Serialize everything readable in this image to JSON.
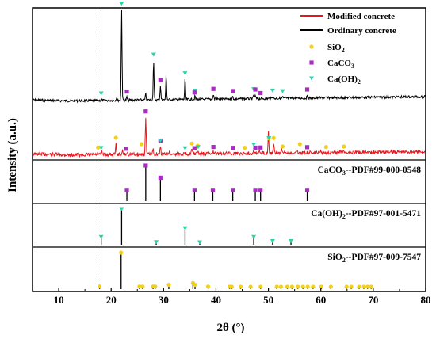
{
  "chart_data": {
    "type": "line",
    "xlabel": "2θ (°)",
    "ylabel": "Intensity (a.u.)",
    "xlim": [
      5,
      80
    ],
    "xticks": [
      10,
      20,
      30,
      40,
      50,
      60,
      70,
      80
    ],
    "dashed_vline_x": 18.1,
    "legend": {
      "position": "top-right",
      "entries": [
        {
          "label": "Modified concrete",
          "color": "#e8161c",
          "marker": "line"
        },
        {
          "label": "Ordinary concrete",
          "color": "#000000",
          "marker": "line"
        },
        {
          "label": "SiO",
          "sub": "2",
          "color": "#f2d11e",
          "marker": "circle"
        },
        {
          "label": "CaCO",
          "sub": "3",
          "color": "#a92bc4",
          "marker": "square"
        },
        {
          "label": "Ca(OH)",
          "sub": "2",
          "color": "#2ad4a8",
          "marker": "triangle"
        }
      ]
    },
    "series": [
      {
        "name": "Ordinary concrete",
        "color": "#000000",
        "peaks": [
          [
            18.1,
            2
          ],
          [
            21.0,
            3
          ],
          [
            22.0,
            115
          ],
          [
            23.0,
            4
          ],
          [
            26.6,
            8
          ],
          [
            28.1,
            50
          ],
          [
            29.4,
            18
          ],
          [
            30.5,
            32
          ],
          [
            34.1,
            26
          ],
          [
            36.0,
            4
          ],
          [
            39.5,
            6
          ],
          [
            40.0,
            4
          ],
          [
            43.2,
            3
          ],
          [
            47.2,
            5
          ],
          [
            47.5,
            4
          ],
          [
            50.8,
            3
          ],
          [
            52.7,
            2
          ],
          [
            57.4,
            2
          ]
        ],
        "markers": [
          {
            "type": "triangle",
            "x": [
              18.1,
              22.0,
              28.1,
              29.4,
              34.1,
              36.0,
              47.2,
              50.8,
              52.7
            ]
          },
          {
            "type": "square",
            "x": [
              23.0,
              29.4,
              35.9,
              39.5,
              43.2,
              47.5,
              48.5,
              57.4
            ]
          }
        ]
      },
      {
        "name": "Modified concrete",
        "color": "#e8161c",
        "peaks": [
          [
            17.5,
            2
          ],
          [
            18.2,
            3
          ],
          [
            20.9,
            14
          ],
          [
            22.2,
            4
          ],
          [
            23.1,
            3
          ],
          [
            26.6,
            47
          ],
          [
            28.0,
            6
          ],
          [
            29.4,
            10
          ],
          [
            31.0,
            3
          ],
          [
            35.4,
            6
          ],
          [
            36.5,
            3
          ],
          [
            39.4,
            3
          ],
          [
            42.5,
            2
          ],
          [
            47.2,
            4
          ],
          [
            48.3,
            3
          ],
          [
            50.0,
            27
          ],
          [
            51.0,
            12
          ],
          [
            52.5,
            4
          ],
          [
            55.5,
            3
          ],
          [
            60.0,
            2
          ],
          [
            64.0,
            2
          ]
        ],
        "markers": [
          {
            "type": "circle",
            "x": [
              17.5,
              20.9,
              26.6,
              35.4,
              36.5,
              50.1,
              51.0,
              52.7,
              56.0,
              61.0,
              64.4,
              25.8,
              45.5
            ]
          },
          {
            "type": "square",
            "x": [
              22.9,
              26.6,
              29.4,
              35.9,
              39.5,
              43.2,
              47.5,
              48.5,
              57.4
            ]
          },
          {
            "type": "triangle",
            "x": [
              18.1,
              29.4,
              34.1,
              36.6,
              47.2,
              50.1
            ]
          }
        ]
      }
    ],
    "reference_patterns": [
      {
        "name": "CaCO3--PDF#99-000-0548",
        "label": "CaCO",
        "sub": "3",
        "suffix": "--PDF#99-000-0548",
        "marker": "square",
        "color": "#a92bc4",
        "sticks": [
          [
            23.0,
            0.3
          ],
          [
            26.6,
            1.0
          ],
          [
            29.4,
            0.65
          ],
          [
            35.9,
            0.3
          ],
          [
            39.4,
            0.3
          ],
          [
            43.2,
            0.3
          ],
          [
            47.5,
            0.3
          ],
          [
            48.5,
            0.3
          ],
          [
            57.4,
            0.3
          ]
        ]
      },
      {
        "name": "Ca(OH)2--PDF#97-001-5471",
        "label": "Ca(OH)",
        "sub": "2",
        "suffix": "--PDF#97-001-5471",
        "marker": "triangle",
        "color": "#2ad4a8",
        "sticks": [
          [
            18.1,
            0.2
          ],
          [
            22.0,
            1.0
          ],
          [
            28.6,
            0.05
          ],
          [
            34.1,
            0.45
          ],
          [
            36.9,
            0.04
          ],
          [
            47.2,
            0.2
          ],
          [
            50.8,
            0.08
          ],
          [
            54.3,
            0.08
          ]
        ]
      },
      {
        "name": "SiO2--PDF#97-009-7547",
        "label": "SiO",
        "sub": "2",
        "suffix": "--PDF#97-009-7547",
        "marker": "circle",
        "color": "#f2d11e",
        "sticks": [
          [
            17.8,
            0.05
          ],
          [
            21.9,
            1.0
          ],
          [
            25.4,
            0.05
          ],
          [
            26.0,
            0.05
          ],
          [
            28.0,
            0.05
          ],
          [
            28.4,
            0.05
          ],
          [
            31.0,
            0.1
          ],
          [
            35.6,
            0.15
          ],
          [
            36.0,
            0.1
          ],
          [
            38.5,
            0.05
          ],
          [
            42.6,
            0.04
          ],
          [
            43.0,
            0.04
          ],
          [
            44.7,
            0.04
          ],
          [
            46.6,
            0.04
          ],
          [
            48.5,
            0.04
          ],
          [
            51.6,
            0.04
          ],
          [
            52.4,
            0.04
          ],
          [
            53.6,
            0.04
          ],
          [
            54.5,
            0.04
          ],
          [
            55.6,
            0.04
          ],
          [
            56.6,
            0.04
          ],
          [
            57.5,
            0.04
          ],
          [
            58.5,
            0.04
          ],
          [
            60.1,
            0.04
          ],
          [
            61.9,
            0.04
          ],
          [
            64.9,
            0.04
          ],
          [
            65.8,
            0.04
          ],
          [
            67.3,
            0.04
          ],
          [
            68.2,
            0.04
          ],
          [
            68.9,
            0.04
          ],
          [
            69.6,
            0.04
          ]
        ]
      }
    ]
  }
}
